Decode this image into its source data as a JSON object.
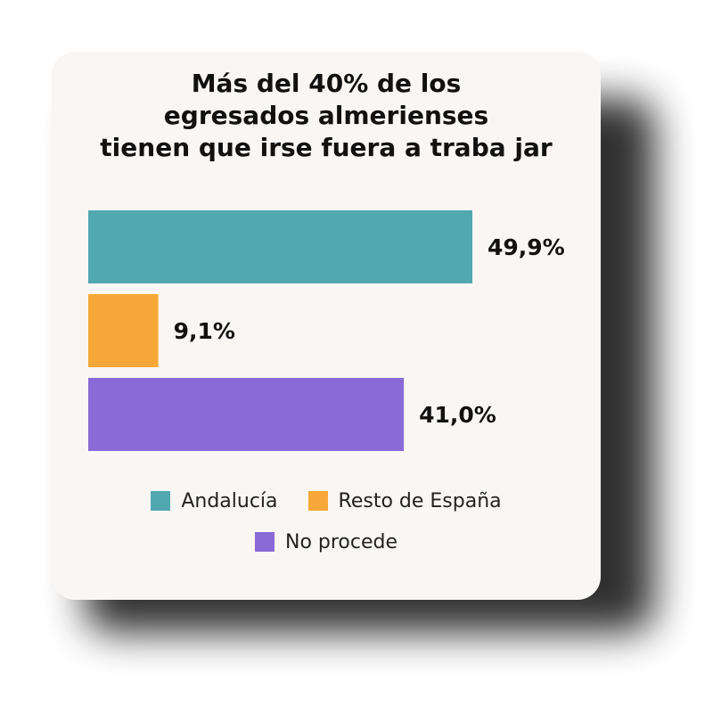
{
  "chart_data": {
    "type": "bar",
    "orientation": "horizontal",
    "title_lines": [
      "Más del 40% de los",
      "egresados almerienses",
      "tienen que irse fuera a traba jar"
    ],
    "categories": [
      "Andalucía",
      "Resto de España",
      "No procede"
    ],
    "values": [
      49.9,
      9.1,
      41.0
    ],
    "value_labels": [
      "49,9%",
      "9,1%",
      "41,0%"
    ],
    "colors": [
      "#52a8b1",
      "#f8a838",
      "#8a6ad6"
    ],
    "xlim": [
      0,
      49.9
    ],
    "grid": false,
    "legend_position": "bottom",
    "legend": [
      {
        "label": "Andalucía",
        "color": "#52a8b1"
      },
      {
        "label": "Resto de España",
        "color": "#f8a838"
      },
      {
        "label": "No procede",
        "color": "#8a6ad6"
      }
    ]
  }
}
